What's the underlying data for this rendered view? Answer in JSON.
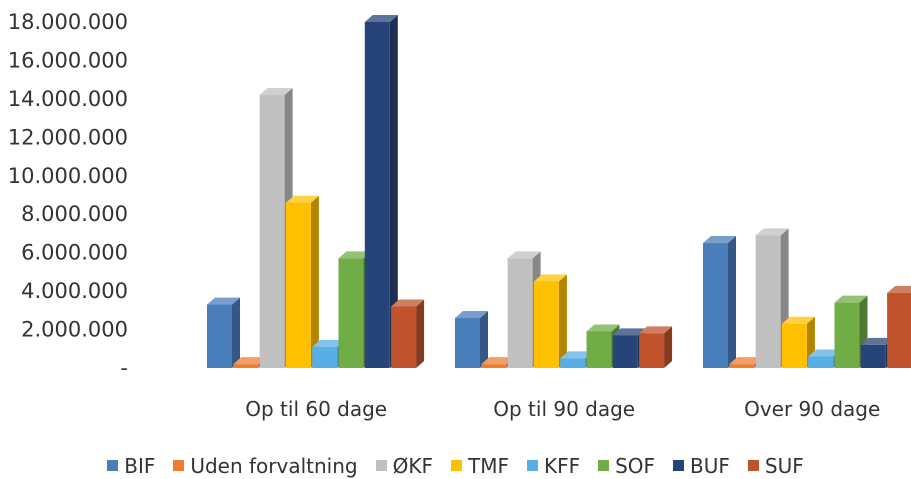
{
  "chart_data": {
    "type": "bar",
    "style": "3d-clustered-column",
    "categories": [
      "Op til 60 dage",
      "Op til 90 dage",
      "Over 90 dage"
    ],
    "series": [
      {
        "name": "BIF",
        "color": "#4a7ebb",
        "values": [
          3300000,
          2600000,
          6500000
        ]
      },
      {
        "name": "Uden forvaltning",
        "color": "#ed7d31",
        "values": [
          200000,
          200000,
          200000
        ]
      },
      {
        "name": "ØKF",
        "color": "#c0c0c0",
        "values": [
          14200000,
          5700000,
          6900000
        ]
      },
      {
        "name": "TMF",
        "color": "#ffc000",
        "values": [
          8600000,
          4500000,
          2300000
        ]
      },
      {
        "name": "KFF",
        "color": "#5aaee6",
        "values": [
          1100000,
          500000,
          600000
        ]
      },
      {
        "name": "SOF",
        "color": "#70ad47",
        "values": [
          5700000,
          1900000,
          3400000
        ]
      },
      {
        "name": "BUF",
        "color": "#264478",
        "values": [
          18000000,
          1700000,
          1200000
        ]
      },
      {
        "name": "SUF",
        "color": "#c0532e",
        "values": [
          3200000,
          1800000,
          3900000
        ]
      }
    ],
    "y_ticks": [
      "18.000.000",
      "16.000.000",
      "14.000.000",
      "12.000.000",
      "10.000.000",
      "8.000.000",
      "6.000.000",
      "4.000.000",
      "2.000.000",
      "-"
    ],
    "ylim": [
      0,
      18000000
    ],
    "grid": false,
    "legend_position": "bottom"
  }
}
